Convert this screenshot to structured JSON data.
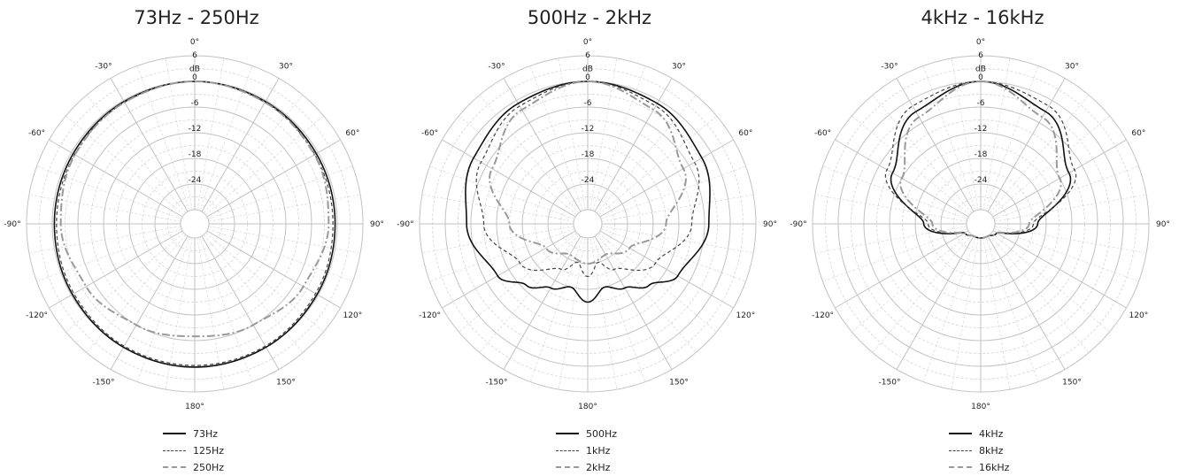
{
  "chart_data": [
    {
      "type": "polar-line",
      "title": "73Hz - 250Hz",
      "angle_labels": [
        "0°",
        "30°",
        "60°",
        "90°",
        "120°",
        "150°",
        "180°",
        "-150°",
        "-120°",
        "-90°",
        "-60°",
        "-30°"
      ],
      "radial_ticks": [
        "6",
        "dB",
        "0",
        "-6",
        "-12",
        "-18",
        "-24"
      ],
      "rlim": [
        -30,
        6
      ],
      "grid": true,
      "legend_placement": "bottom",
      "series": [
        {
          "name": "73Hz",
          "style": "solid",
          "color": "#111111",
          "angles": [
            0,
            30,
            60,
            90,
            120,
            150,
            180,
            210,
            240,
            270,
            300,
            330
          ],
          "values": [
            0,
            -0.3,
            -0.5,
            -0.5,
            -0.3,
            0,
            0.2,
            0,
            -0.3,
            -0.5,
            -0.5,
            -0.3
          ]
        },
        {
          "name": "125Hz",
          "style": "dashed",
          "color": "#444444",
          "angles": [
            0,
            30,
            60,
            90,
            120,
            150,
            180,
            210,
            240,
            270,
            300,
            330
          ],
          "values": [
            0,
            -0.5,
            -0.9,
            -1.0,
            -0.7,
            -0.3,
            -0.2,
            -0.3,
            -0.7,
            -1.0,
            -0.9,
            -0.5
          ]
        },
        {
          "name": "250Hz",
          "style": "dash-dot",
          "color": "#999999",
          "angles": [
            0,
            30,
            60,
            90,
            120,
            150,
            180,
            210,
            240,
            270,
            300,
            330
          ],
          "values": [
            0,
            -0.5,
            -1.0,
            -2.0,
            -4.0,
            -6.0,
            -7.0,
            -6.0,
            -4.0,
            -2.0,
            -1.0,
            -0.5
          ]
        }
      ]
    },
    {
      "type": "polar-line",
      "title": "500Hz - 2kHz",
      "angle_labels": [
        "0°",
        "30°",
        "60°",
        "90°",
        "120°",
        "150°",
        "180°",
        "-150°",
        "-120°",
        "-90°",
        "-60°",
        "-30°"
      ],
      "radial_ticks": [
        "6",
        "dB",
        "0",
        "-6",
        "-12",
        "-18",
        "-24"
      ],
      "rlim": [
        -30,
        6
      ],
      "grid": true,
      "legend_placement": "bottom",
      "series": [
        {
          "name": "500Hz",
          "style": "solid",
          "color": "#111111",
          "angles": [
            0,
            30,
            60,
            90,
            120,
            135,
            150,
            165,
            180,
            195,
            210,
            225,
            240,
            270,
            300,
            330
          ],
          "values": [
            0,
            -0.8,
            -2.5,
            -5.0,
            -9.0,
            -13.0,
            -16.0,
            -18.0,
            -15.0,
            -18.0,
            -16.0,
            -13.0,
            -9.0,
            -5.0,
            -2.5,
            -0.8
          ]
        },
        {
          "name": "1kHz",
          "style": "dashed",
          "color": "#444444",
          "angles": [
            0,
            30,
            60,
            90,
            120,
            150,
            165,
            180,
            195,
            210,
            240,
            270,
            300,
            330
          ],
          "values": [
            0,
            -1.5,
            -4.5,
            -9.0,
            -15.0,
            -21.0,
            -24.0,
            -21.0,
            -24.0,
            -21.0,
            -15.0,
            -9.0,
            -4.5,
            -1.5
          ]
        },
        {
          "name": "2kHz",
          "style": "dash-dot",
          "color": "#999999",
          "angles": [
            0,
            30,
            60,
            90,
            120,
            150,
            180,
            210,
            240,
            270,
            300,
            330
          ],
          "values": [
            0,
            -2.5,
            -7.5,
            -15.0,
            -22.0,
            -25.0,
            -24.0,
            -25.0,
            -22.0,
            -15.0,
            -7.5,
            -2.5
          ]
        }
      ]
    },
    {
      "type": "polar-line",
      "title": "4kHz - 16kHz",
      "angle_labels": [
        "0°",
        "30°",
        "60°",
        "90°",
        "120°",
        "150°",
        "180°",
        "-150°",
        "-120°",
        "-90°",
        "-60°",
        "-30°"
      ],
      "radial_ticks": [
        "6",
        "dB",
        "0",
        "-6",
        "-12",
        "-18",
        "-24"
      ],
      "rlim": [
        -30,
        6
      ],
      "grid": true,
      "legend_placement": "bottom",
      "series": [
        {
          "name": "4kHz",
          "style": "solid",
          "color": "#111111",
          "angles": [
            0,
            30,
            60,
            90,
            120,
            150,
            180,
            210,
            240,
            270,
            300,
            330
          ],
          "values": [
            0,
            -3.0,
            -9.5,
            -20.0,
            -29.0,
            -30.0,
            -30.0,
            -30.0,
            -29.0,
            -20.0,
            -9.5,
            -3.0
          ]
        },
        {
          "name": "8kHz",
          "style": "dashed",
          "color": "#444444",
          "angles": [
            0,
            30,
            60,
            90,
            120,
            150,
            180,
            210,
            240,
            270,
            300,
            330
          ],
          "values": [
            0,
            -1.5,
            -8.0,
            -21.0,
            -29.0,
            -30.0,
            -30.0,
            -30.0,
            -29.0,
            -21.0,
            -8.0,
            -1.5
          ]
        },
        {
          "name": "16kHz",
          "style": "dash-dot",
          "color": "#999999",
          "angles": [
            0,
            30,
            60,
            90,
            120,
            150,
            180,
            210,
            240,
            270,
            300,
            330
          ],
          "values": [
            0,
            -4.5,
            -12.0,
            -22.0,
            -29.0,
            -30.0,
            -30.0,
            -30.0,
            -29.0,
            -22.0,
            -12.0,
            -4.5
          ]
        }
      ]
    }
  ]
}
